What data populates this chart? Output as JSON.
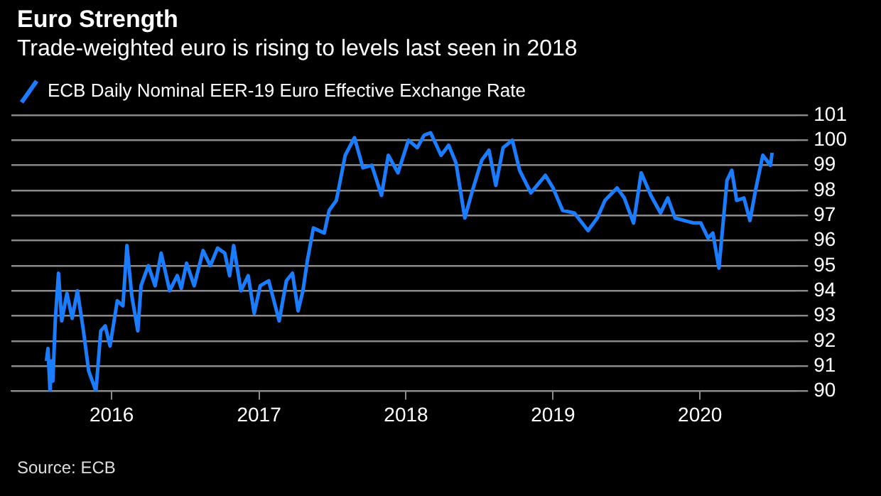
{
  "chart_data": {
    "type": "line",
    "title": "Euro Strength",
    "subtitle": "Trade-weighted euro is rising to levels last seen in 2018",
    "annotations": [
      "Source: ECB"
    ],
    "legend": "top left",
    "grid": "y",
    "marker": "none",
    "line_style": "solid",
    "xlim": [
      "2015-04-27",
      "2020-08-28"
    ],
    "xticks": [
      "2016",
      "2017",
      "2018",
      "2019",
      "2020"
    ],
    "ylim": [
      90,
      101
    ],
    "yticks": [
      90,
      91,
      92,
      93,
      94,
      95,
      96,
      97,
      98,
      99,
      100,
      101
    ],
    "series": [
      {
        "name": "ECB Daily Nominal EER-19 Euro Effective Exchange Rate",
        "color": "#1a7cff",
        "x": [
          "2015-07-23",
          "2015-07-27",
          "2015-08-01",
          "2015-08-04",
          "2015-08-08",
          "2015-08-14",
          "2015-08-22",
          "2015-08-30",
          "2015-09-12",
          "2015-09-25",
          "2015-10-08",
          "2015-10-23",
          "2015-11-05",
          "2015-11-23",
          "2015-12-05",
          "2015-12-16",
          "2015-12-28",
          "2016-01-15",
          "2016-01-29",
          "2016-02-08",
          "2016-02-20",
          "2016-03-06",
          "2016-03-14",
          "2016-04-01",
          "2016-04-18",
          "2016-05-03",
          "2016-05-24",
          "2016-06-12",
          "2016-06-22",
          "2016-07-05",
          "2016-07-24",
          "2016-08-15",
          "2016-09-02",
          "2016-09-20",
          "2016-10-08",
          "2016-10-20",
          "2016-10-30",
          "2016-11-17",
          "2016-12-05",
          "2016-12-20",
          "2017-01-04",
          "2017-01-25",
          "2017-02-20",
          "2017-03-10",
          "2017-03-25",
          "2017-04-08",
          "2017-04-20",
          "2017-05-01",
          "2017-05-16",
          "2017-06-12",
          "2017-06-24",
          "2017-07-12",
          "2017-08-03",
          "2017-08-26",
          "2017-09-16",
          "2017-10-08",
          "2017-11-01",
          "2017-11-18",
          "2017-12-12",
          "2018-01-07",
          "2018-01-29",
          "2018-02-15",
          "2018-03-03",
          "2018-03-29",
          "2018-04-17",
          "2018-05-05",
          "2018-05-27",
          "2018-06-15",
          "2018-07-08",
          "2018-07-26",
          "2018-08-12",
          "2018-08-30",
          "2018-09-22",
          "2018-10-10",
          "2018-11-07",
          "2018-12-13",
          "2019-01-01",
          "2019-01-25",
          "2019-02-23",
          "2019-03-29",
          "2019-04-21",
          "2019-05-10",
          "2019-06-09",
          "2019-06-27",
          "2019-07-20",
          "2019-08-08",
          "2019-09-01",
          "2019-09-25",
          "2019-10-13",
          "2019-10-31",
          "2019-11-23",
          "2019-12-17",
          "2020-01-03",
          "2020-01-21",
          "2020-02-02",
          "2020-02-17",
          "2020-03-08",
          "2020-03-20",
          "2020-04-01",
          "2020-04-19",
          "2020-05-04",
          "2020-05-19",
          "2020-06-05",
          "2020-06-24",
          "2020-06-28"
        ],
        "values": [
          91.2,
          91.7,
          90.0,
          91.2,
          90.4,
          92.8,
          94.7,
          92.8,
          93.9,
          92.9,
          94.0,
          92.4,
          90.8,
          90.0,
          92.4,
          92.6,
          91.8,
          93.6,
          93.4,
          95.8,
          93.8,
          92.4,
          94.2,
          95.0,
          94.2,
          95.5,
          94.0,
          94.6,
          94.1,
          95.1,
          94.2,
          95.6,
          95.0,
          95.7,
          95.5,
          94.6,
          95.8,
          94.0,
          94.6,
          93.1,
          94.2,
          94.4,
          92.8,
          94.4,
          94.7,
          93.2,
          94.0,
          95.2,
          96.5,
          96.3,
          97.2,
          97.6,
          99.4,
          100.1,
          98.9,
          99.0,
          97.8,
          99.4,
          98.7,
          100.0,
          99.7,
          100.2,
          100.3,
          99.4,
          99.8,
          99.1,
          96.9,
          98.0,
          99.2,
          99.6,
          98.2,
          99.7,
          100.0,
          98.8,
          97.9,
          98.6,
          98.1,
          97.2,
          97.1,
          96.4,
          96.9,
          97.6,
          98.1,
          97.7,
          96.7,
          98.7,
          97.8,
          97.1,
          97.7,
          96.9,
          96.8,
          96.7,
          96.7,
          96.1,
          96.3,
          94.9,
          98.4,
          98.8,
          97.6,
          97.7,
          96.8,
          98.1,
          99.4,
          99.0,
          99.5
        ]
      }
    ]
  }
}
